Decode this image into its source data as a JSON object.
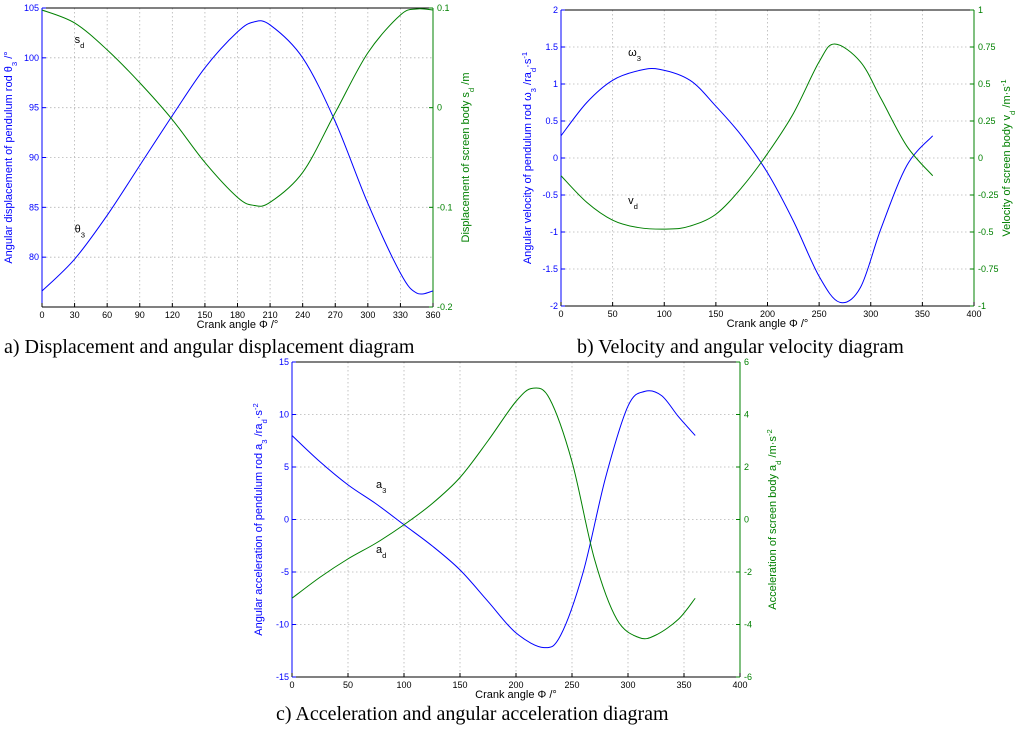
{
  "chart_data": [
    {
      "type": "line",
      "caption": "a) Displacement and angular displacement diagram",
      "xlabel": "Crank angle Φ /°",
      "ylabel_left": "Angular displacement of pendulum rod  θ3 /°",
      "ylabel_right": "Displacement of screen body  sd /m",
      "xlim": [
        0,
        360
      ],
      "xticks": [
        0,
        30,
        60,
        90,
        120,
        150,
        180,
        210,
        240,
        270,
        300,
        330,
        360
      ],
      "ylim_left": [
        75,
        105
      ],
      "yticks_left": [
        80,
        85,
        90,
        95,
        100,
        105
      ],
      "ylim_right": [
        -0.2,
        0.1
      ],
      "yticks_right": [
        -0.2,
        -0.1,
        0,
        0.1
      ],
      "grid": true,
      "colors": {
        "left": "#0000ff",
        "right": "#008000"
      },
      "series": [
        {
          "name": "θ3",
          "axis": "left",
          "x": [
            0,
            30,
            60,
            90,
            120,
            150,
            180,
            195,
            210,
            240,
            270,
            300,
            330,
            345,
            360
          ],
          "y": [
            76.6,
            79.8,
            84.2,
            89.2,
            94.2,
            99.0,
            102.6,
            103.6,
            103.3,
            100.0,
            93.6,
            85.4,
            78.4,
            76.4,
            76.6
          ]
        },
        {
          "name": "sd",
          "axis": "right",
          "x": [
            0,
            30,
            60,
            90,
            120,
            150,
            180,
            195,
            210,
            240,
            270,
            300,
            330,
            345,
            360
          ],
          "y": [
            0.098,
            0.085,
            0.058,
            0.025,
            -0.012,
            -0.055,
            -0.09,
            -0.098,
            -0.095,
            -0.065,
            -0.005,
            0.055,
            0.093,
            0.099,
            0.098
          ]
        }
      ],
      "annotations": [
        {
          "base": "s",
          "sub": "d",
          "x": 30,
          "y": 101.5,
          "axis": "left"
        },
        {
          "base": "θ",
          "sub": "3",
          "x": 30,
          "y": 82.5,
          "axis": "left"
        }
      ]
    },
    {
      "type": "line",
      "caption": "b) Velocity and angular velocity diagram",
      "xlabel": "Crank angle  Φ /°",
      "ylabel_left": "Angular velocity of pendulum rod  ω3 /rad·s-1",
      "ylabel_right": "Velocity of screen body  vd /m·s-1",
      "xlim": [
        0,
        400
      ],
      "xticks": [
        0,
        50,
        100,
        150,
        200,
        250,
        300,
        350,
        400
      ],
      "ylim_left": [
        -2,
        2
      ],
      "yticks_left": [
        -2,
        -1.5,
        -1,
        -0.5,
        0,
        0.5,
        1,
        1.5,
        2
      ],
      "ylim_right": [
        -1,
        1
      ],
      "yticks_right": [
        -1,
        -0.75,
        -0.5,
        -0.25,
        0,
        0.25,
        0.5,
        0.75,
        1
      ],
      "grid": true,
      "colors": {
        "left": "#0000ff",
        "right": "#008000"
      },
      "series": [
        {
          "name": "ω3",
          "axis": "left",
          "x": [
            0,
            25,
            50,
            75,
            95,
            125,
            150,
            175,
            200,
            225,
            250,
            270,
            290,
            310,
            335,
            360
          ],
          "y": [
            0.3,
            0.75,
            1.05,
            1.18,
            1.2,
            1.05,
            0.7,
            0.3,
            -0.2,
            -0.85,
            -1.6,
            -1.95,
            -1.75,
            -0.95,
            -0.1,
            0.3
          ]
        },
        {
          "name": "vd",
          "axis": "right",
          "x": [
            0,
            25,
            50,
            75,
            105,
            125,
            150,
            175,
            200,
            225,
            250,
            265,
            290,
            310,
            335,
            360
          ],
          "y": [
            -0.12,
            -0.3,
            -0.42,
            -0.47,
            -0.48,
            -0.46,
            -0.38,
            -0.2,
            0.03,
            0.3,
            0.65,
            0.77,
            0.65,
            0.4,
            0.08,
            -0.12
          ]
        }
      ],
      "annotations": [
        {
          "base": "ω",
          "sub": "3",
          "x": 65,
          "y": 1.38,
          "axis": "left"
        },
        {
          "base": "v",
          "sub": "d",
          "x": 65,
          "y": -0.62,
          "axis": "left"
        }
      ]
    },
    {
      "type": "line",
      "caption": "c) Acceleration and angular acceleration diagram",
      "xlabel": "Crank angle  Φ /°",
      "ylabel_left": "Angular acceleration of pendulum rod  a3 /rad·s-2",
      "ylabel_right": "Acceleration of screen body  ad /m·s-2",
      "xlim": [
        0,
        400
      ],
      "xticks": [
        0,
        50,
        100,
        150,
        200,
        250,
        300,
        350,
        400
      ],
      "ylim_left": [
        -15,
        15
      ],
      "yticks_left": [
        -15,
        -10,
        -5,
        0,
        5,
        10,
        15
      ],
      "ylim_right": [
        -6,
        6
      ],
      "yticks_right": [
        -6,
        -4,
        -2,
        0,
        2,
        4,
        6
      ],
      "grid": true,
      "colors": {
        "left": "#0000ff",
        "right": "#008000"
      },
      "series": [
        {
          "name": "a3",
          "axis": "left",
          "x": [
            0,
            25,
            50,
            75,
            100,
            125,
            150,
            175,
            200,
            225,
            240,
            260,
            280,
            300,
            315,
            330,
            345,
            360
          ],
          "y": [
            8.0,
            5.5,
            3.3,
            1.5,
            -0.5,
            -2.5,
            -4.8,
            -7.8,
            -10.8,
            -12.2,
            -11.0,
            -5.0,
            4.0,
            10.8,
            12.2,
            11.8,
            9.8,
            8.0
          ]
        },
        {
          "name": "ad",
          "axis": "right",
          "x": [
            0,
            25,
            50,
            75,
            100,
            125,
            150,
            175,
            200,
            215,
            230,
            250,
            270,
            290,
            310,
            325,
            345,
            360
          ],
          "y": [
            -3.0,
            -2.2,
            -1.5,
            -0.9,
            -0.2,
            0.6,
            1.6,
            3.0,
            4.5,
            5.0,
            4.6,
            2.2,
            -1.5,
            -3.8,
            -4.5,
            -4.4,
            -3.8,
            -3.0
          ]
        }
      ],
      "annotations": [
        {
          "base": "a",
          "sub": "3",
          "x": 75,
          "y": 3.0,
          "axis": "left"
        },
        {
          "base": "a",
          "sub": "d",
          "x": 75,
          "y": -3.2,
          "axis": "left"
        }
      ]
    }
  ]
}
